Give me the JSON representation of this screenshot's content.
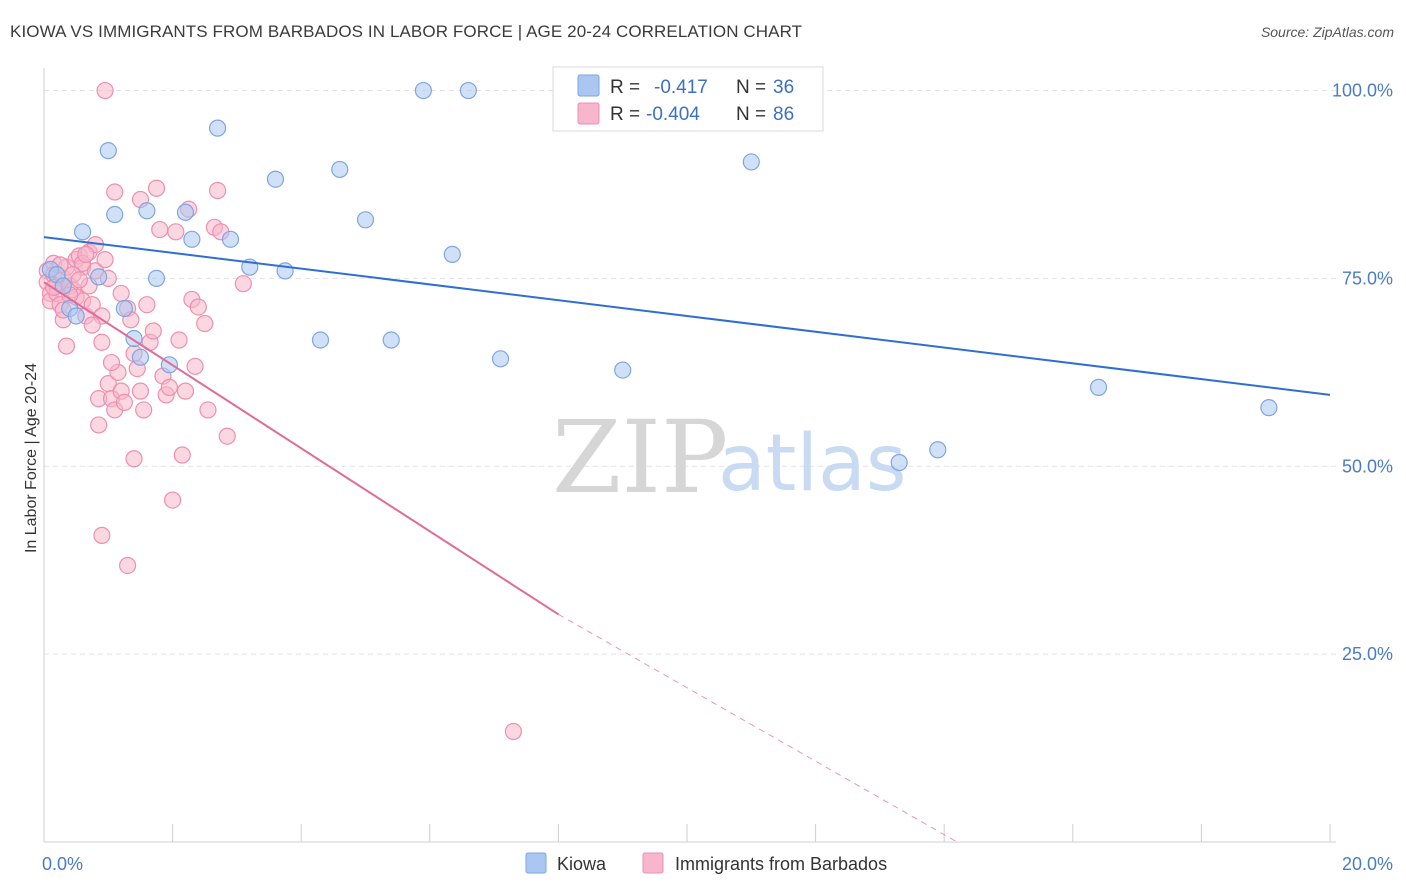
{
  "title": "KIOWA VS IMMIGRANTS FROM BARBADOS IN LABOR FORCE | AGE 20-24 CORRELATION CHART",
  "source": "Source: ZipAtlas.com",
  "watermark": {
    "zip": "ZIP",
    "atlas": "atlas"
  },
  "colors": {
    "kiowa_fill": "#a9c7f0",
    "kiowa_stroke": "#7ea6e0",
    "kiowa_line": "#2e6fd1",
    "barbados_fill": "#f7b6cb",
    "barbados_stroke": "#ee8fb0",
    "barbados_line": "#e06b98",
    "tick": "#4a7cc4",
    "grid": "#e3e3e3"
  },
  "legend": {
    "rows": [
      {
        "r_label": "R =",
        "r_value": "-0.417",
        "n_label": "N =",
        "n_value": "36"
      },
      {
        "r_label": "R =",
        "r_value": "-0.404",
        "n_label": "N =",
        "n_value": "86"
      }
    ]
  },
  "chart_data": {
    "type": "scatter",
    "title": "KIOWA VS IMMIGRANTS FROM BARBADOS IN LABOR FORCE | AGE 20-24 CORRELATION CHART",
    "xlabel": "",
    "ylabel": "In Labor Force | Age 20-24",
    "xlim": [
      0,
      20
    ],
    "ylim": [
      0,
      103
    ],
    "x_tick_labels": [
      "0.0%",
      "20.0%"
    ],
    "y_ticks": [
      25,
      50,
      75,
      100
    ],
    "y_tick_labels": [
      "25.0%",
      "50.0%",
      "75.0%",
      "100.0%"
    ],
    "legend_position": "top-center",
    "series": [
      {
        "name": "Kiowa",
        "r": -0.417,
        "n": 36,
        "trend": {
          "x0": 0,
          "y0": 80.5,
          "x1": 20,
          "y1": 59.5,
          "dashed_from": null
        },
        "points": [
          [
            0.1,
            76.2
          ],
          [
            0.2,
            75.5
          ],
          [
            0.3,
            74
          ],
          [
            0.4,
            71
          ],
          [
            0.5,
            70
          ],
          [
            0.6,
            81.2
          ],
          [
            0.85,
            75.2
          ],
          [
            1.0,
            92
          ],
          [
            1.1,
            83.5
          ],
          [
            1.25,
            71
          ],
          [
            1.4,
            67
          ],
          [
            1.5,
            64.5
          ],
          [
            1.75,
            75
          ],
          [
            1.6,
            84
          ],
          [
            1.95,
            63.5
          ],
          [
            2.2,
            83.8
          ],
          [
            2.3,
            80.2
          ],
          [
            2.7,
            95
          ],
          [
            2.9,
            80.2
          ],
          [
            3.2,
            76.5
          ],
          [
            3.6,
            88.2
          ],
          [
            3.75,
            76
          ],
          [
            4.3,
            66.8
          ],
          [
            4.6,
            89.5
          ],
          [
            5.0,
            82.8
          ],
          [
            5.4,
            66.8
          ],
          [
            5.9,
            100
          ],
          [
            6.35,
            78.2
          ],
          [
            6.6,
            100
          ],
          [
            7.1,
            64.3
          ],
          [
            9.0,
            62.8
          ],
          [
            11.0,
            90.5
          ],
          [
            13.3,
            50.5
          ],
          [
            13.9,
            52.2
          ],
          [
            16.4,
            60.5
          ],
          [
            19.05,
            57.8
          ]
        ]
      },
      {
        "name": "Immigrants from Barbados",
        "r": -0.404,
        "n": 86,
        "trend": {
          "x0": 0,
          "y0": 74.5,
          "x1": 8.0,
          "y1": 30.3,
          "dashed_to_x": 14.2,
          "dashed_to_y": 0
        },
        "points": [
          [
            0.05,
            76
          ],
          [
            0.05,
            74.5
          ],
          [
            0.1,
            73
          ],
          [
            0.1,
            72
          ],
          [
            0.15,
            77
          ],
          [
            0.15,
            75.5
          ],
          [
            0.2,
            74
          ],
          [
            0.2,
            73
          ],
          [
            0.25,
            71.5
          ],
          [
            0.3,
            75
          ],
          [
            0.3,
            69.5
          ],
          [
            0.35,
            66
          ],
          [
            0.35,
            76.5
          ],
          [
            0.4,
            74
          ],
          [
            0.45,
            73.5
          ],
          [
            0.5,
            77.5
          ],
          [
            0.5,
            72.5
          ],
          [
            0.55,
            78
          ],
          [
            0.6,
            76.5
          ],
          [
            0.6,
            72
          ],
          [
            0.65,
            70
          ],
          [
            0.7,
            78.5
          ],
          [
            0.7,
            74
          ],
          [
            0.75,
            71.5
          ],
          [
            0.8,
            79.5
          ],
          [
            0.8,
            76
          ],
          [
            0.85,
            59
          ],
          [
            0.85,
            55.5
          ],
          [
            0.9,
            70
          ],
          [
            0.9,
            66.5
          ],
          [
            0.95,
            77.5
          ],
          [
            1.0,
            75
          ],
          [
            1.0,
            61
          ],
          [
            1.05,
            59
          ],
          [
            1.1,
            57.5
          ],
          [
            1.1,
            86.5
          ],
          [
            1.15,
            62.5
          ],
          [
            1.2,
            73
          ],
          [
            1.2,
            60
          ],
          [
            1.25,
            58.5
          ],
          [
            1.3,
            71
          ],
          [
            1.35,
            69.5
          ],
          [
            1.4,
            65
          ],
          [
            1.4,
            51
          ],
          [
            1.45,
            63
          ],
          [
            1.5,
            85.5
          ],
          [
            1.5,
            60
          ],
          [
            1.55,
            57.5
          ],
          [
            1.6,
            71.5
          ],
          [
            1.65,
            66.5
          ],
          [
            1.7,
            68
          ],
          [
            1.75,
            87
          ],
          [
            1.8,
            81.5
          ],
          [
            1.85,
            62
          ],
          [
            1.9,
            59.5
          ],
          [
            1.95,
            60.5
          ],
          [
            2.0,
            45.5
          ],
          [
            2.05,
            81.2
          ],
          [
            2.1,
            66.8
          ],
          [
            2.15,
            51.5
          ],
          [
            2.2,
            60
          ],
          [
            2.25,
            84.2
          ],
          [
            2.3,
            72.2
          ],
          [
            2.35,
            63.3
          ],
          [
            2.4,
            71.2
          ],
          [
            2.5,
            69
          ],
          [
            2.55,
            57.5
          ],
          [
            2.65,
            81.8
          ],
          [
            2.7,
            86.7
          ],
          [
            2.75,
            81.2
          ],
          [
            2.85,
            54
          ],
          [
            3.1,
            74.3
          ],
          [
            0.6,
            77
          ],
          [
            0.95,
            100
          ],
          [
            0.9,
            40.8
          ],
          [
            1.3,
            36.8
          ],
          [
            7.3,
            14.7
          ],
          [
            0.45,
            75.5
          ],
          [
            0.3,
            70.8
          ],
          [
            0.75,
            68.8
          ],
          [
            1.05,
            63.8
          ],
          [
            0.55,
            74.8
          ],
          [
            0.4,
            72.8
          ],
          [
            0.65,
            78.2
          ],
          [
            0.25,
            76.8
          ],
          [
            0.15,
            73.8
          ]
        ]
      }
    ]
  },
  "bottom_legend": {
    "kiowa": "Kiowa",
    "barbados": "Immigrants from Barbados"
  }
}
